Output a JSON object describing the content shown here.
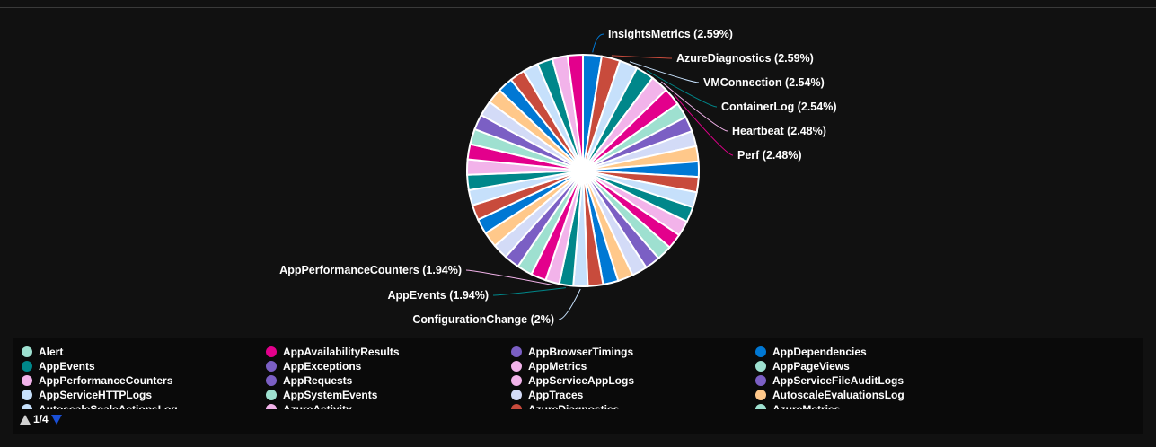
{
  "chart_data": {
    "type": "pie",
    "title": "",
    "palette": [
      "#0078d4",
      "#c84b3c",
      "#c6e0fb",
      "#00878a",
      "#f2b3ea",
      "#e3008c",
      "#9ee0d0",
      "#7b5fc4",
      "#d3dbf7",
      "#ffc88a"
    ],
    "slice_count": 46,
    "slices": [
      {
        "name": "InsightsMetrics",
        "value": 2.59
      },
      {
        "name": "AzureDiagnostics",
        "value": 2.59
      },
      {
        "name": "VMConnection",
        "value": 2.54
      },
      {
        "name": "ContainerLog",
        "value": 2.54
      },
      {
        "name": "Heartbeat",
        "value": 2.48
      },
      {
        "name": "Perf",
        "value": 2.48
      },
      {
        "name": "AppPerformanceCounters",
        "value": 1.94
      },
      {
        "name": "AppEvents",
        "value": 1.94
      },
      {
        "name": "ConfigurationChange",
        "value": 2
      }
    ],
    "callouts": [
      {
        "text": "InsightsMetrics (2.59%)"
      },
      {
        "text": "AzureDiagnostics (2.59%)"
      },
      {
        "text": "VMConnection (2.54%)"
      },
      {
        "text": "ContainerLog (2.54%)"
      },
      {
        "text": "Heartbeat (2.48%)"
      },
      {
        "text": "Perf (2.48%)"
      },
      {
        "text": "AppPerformanceCounters (1.94%)"
      },
      {
        "text": "AppEvents (1.94%)"
      },
      {
        "text": "ConfigurationChange (2%)"
      }
    ]
  },
  "legend": {
    "items": [
      {
        "label": "Alert",
        "color": "#9ee0d0"
      },
      {
        "label": "AppAvailabilityResults",
        "color": "#e3008c"
      },
      {
        "label": "AppBrowserTimings",
        "color": "#7b5fc4"
      },
      {
        "label": "AppDependencies",
        "color": "#0078d4"
      },
      {
        "label": "AppEvents",
        "color": "#00878a"
      },
      {
        "label": "AppExceptions",
        "color": "#7b5fc4"
      },
      {
        "label": "AppMetrics",
        "color": "#f2b3ea"
      },
      {
        "label": "AppPageViews",
        "color": "#9ee0d0"
      },
      {
        "label": "AppPerformanceCounters",
        "color": "#f2b3ea"
      },
      {
        "label": "AppRequests",
        "color": "#7b5fc4"
      },
      {
        "label": "AppServiceAppLogs",
        "color": "#f2b3ea"
      },
      {
        "label": "AppServiceFileAuditLogs",
        "color": "#7b5fc4"
      },
      {
        "label": "AppServiceHTTPLogs",
        "color": "#c6e0fb"
      },
      {
        "label": "AppSystemEvents",
        "color": "#9ee0d0"
      },
      {
        "label": "AppTraces",
        "color": "#d3dbf7"
      },
      {
        "label": "AutoscaleEvaluationsLog",
        "color": "#ffc88a"
      },
      {
        "label": "AutoscaleScaleActionsLog",
        "color": "#c6e0fb"
      },
      {
        "label": "AzureActivity",
        "color": "#f2b3ea"
      },
      {
        "label": "AzureDiagnostics",
        "color": "#c84b3c"
      },
      {
        "label": "AzureMetrics",
        "color": "#9ee0d0"
      }
    ],
    "pager": {
      "text": "1/4"
    }
  }
}
